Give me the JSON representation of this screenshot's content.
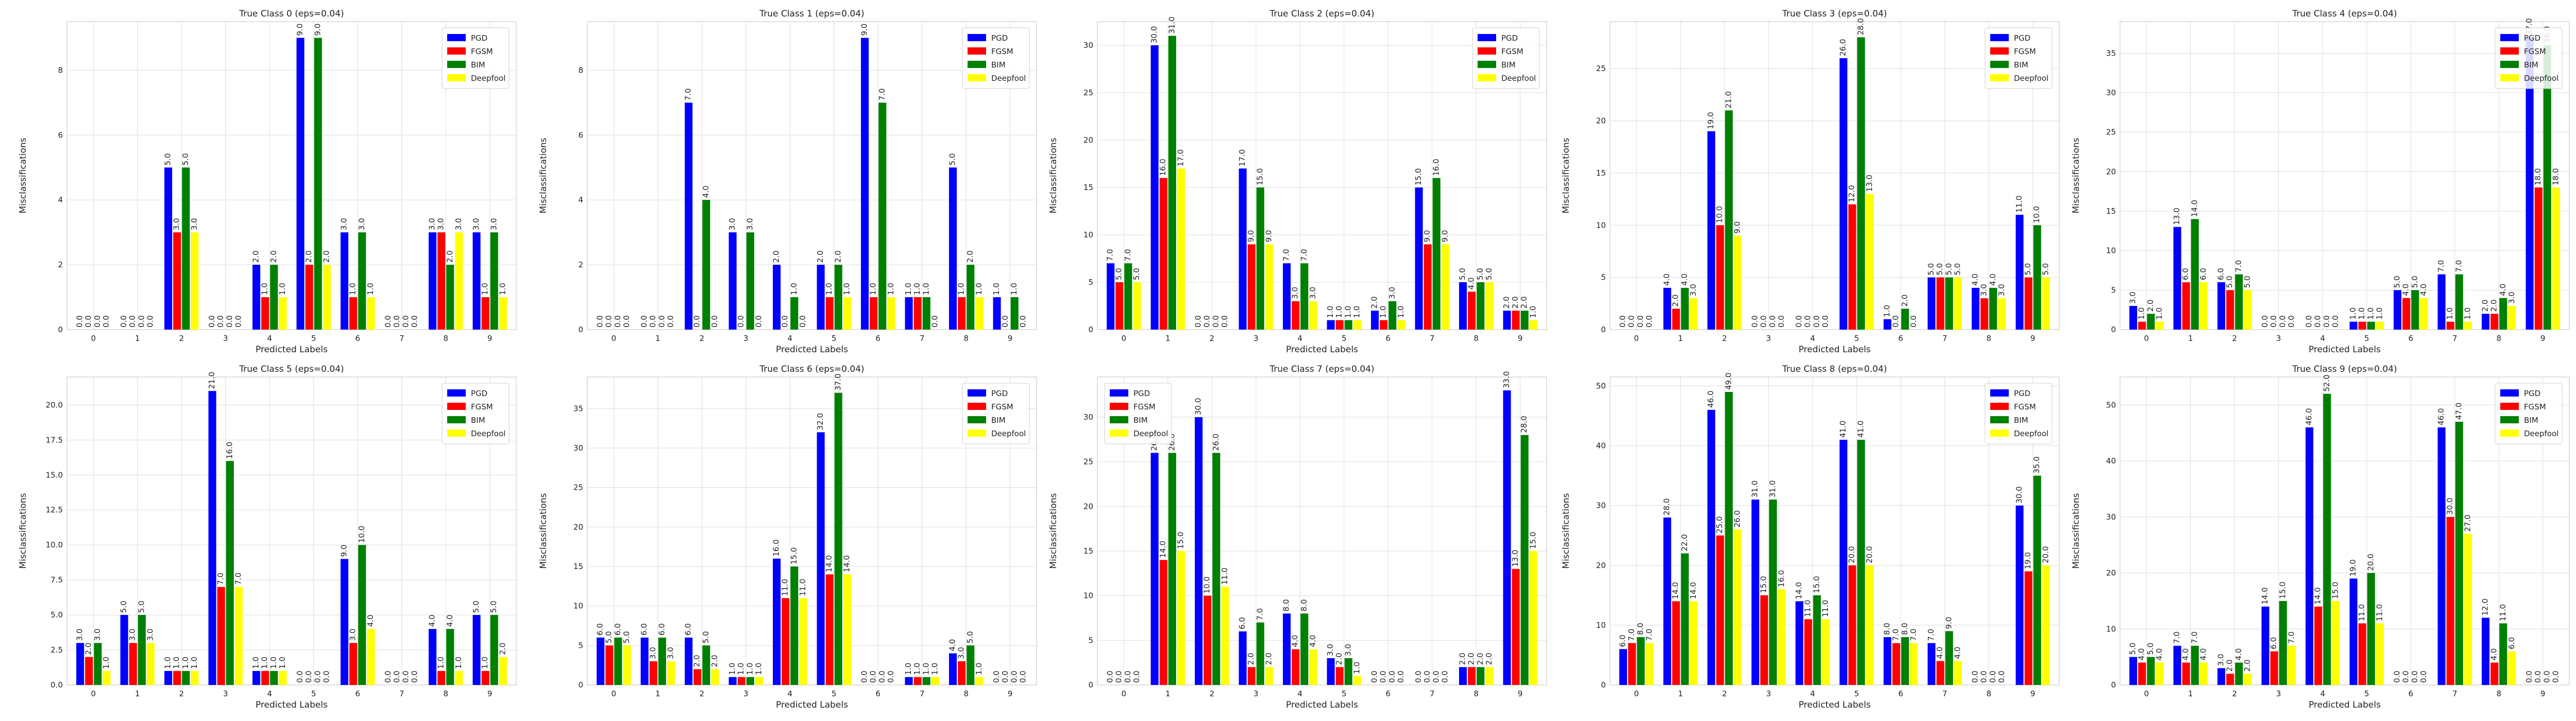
{
  "chart_data": [
    {
      "type": "bar",
      "title": "True Class 0 (eps=0.04)",
      "xlabel": "Predicted Labels",
      "ylabel": "Misclassifications",
      "categories": [
        "0",
        "1",
        "2",
        "3",
        "4",
        "5",
        "6",
        "7",
        "8",
        "9"
      ],
      "ylim": [
        0,
        9.5
      ],
      "yticks": [
        0,
        2,
        4,
        6,
        8
      ],
      "legend_position": "top-right",
      "grid": true,
      "series": [
        {
          "name": "PGD",
          "color": "#0000ff",
          "values": [
            0,
            0,
            5,
            0,
            2,
            9,
            3,
            0,
            3,
            3
          ]
        },
        {
          "name": "FGSM",
          "color": "#ff0000",
          "values": [
            0,
            0,
            3,
            0,
            1,
            2,
            1,
            0,
            3,
            1
          ]
        },
        {
          "name": "BIM",
          "color": "#008000",
          "values": [
            0,
            0,
            5,
            0,
            2,
            9,
            3,
            0,
            2,
            3
          ]
        },
        {
          "name": "Deepfool",
          "color": "#ffff00",
          "values": [
            0,
            0,
            3,
            0,
            1,
            2,
            1,
            0,
            3,
            1
          ]
        }
      ]
    },
    {
      "type": "bar",
      "title": "True Class 1 (eps=0.04)",
      "xlabel": "Predicted Labels",
      "ylabel": "Misclassifications",
      "categories": [
        "0",
        "1",
        "2",
        "3",
        "4",
        "5",
        "6",
        "7",
        "8",
        "9"
      ],
      "ylim": [
        0,
        9.5
      ],
      "yticks": [
        0,
        2,
        4,
        6,
        8
      ],
      "legend_position": "top-right",
      "grid": true,
      "series": [
        {
          "name": "PGD",
          "color": "#0000ff",
          "values": [
            0,
            0,
            7,
            3,
            2,
            2,
            9,
            1,
            5,
            1
          ]
        },
        {
          "name": "FGSM",
          "color": "#ff0000",
          "values": [
            0,
            0,
            0,
            0,
            0,
            1,
            1,
            1,
            1,
            0
          ]
        },
        {
          "name": "BIM",
          "color": "#008000",
          "values": [
            0,
            0,
            4,
            3,
            1,
            2,
            7,
            1,
            2,
            1
          ]
        },
        {
          "name": "Deepfool",
          "color": "#ffff00",
          "values": [
            0,
            0,
            0,
            0,
            0,
            1,
            1,
            0,
            1,
            0
          ]
        }
      ]
    },
    {
      "type": "bar",
      "title": "True Class 2 (eps=0.04)",
      "xlabel": "Predicted Labels",
      "ylabel": "Misclassifications",
      "categories": [
        "0",
        "1",
        "2",
        "3",
        "4",
        "5",
        "6",
        "7",
        "8",
        "9"
      ],
      "ylim": [
        0,
        32.5
      ],
      "yticks": [
        0,
        5,
        10,
        15,
        20,
        25,
        30
      ],
      "legend_position": "top-right",
      "grid": true,
      "series": [
        {
          "name": "PGD",
          "color": "#0000ff",
          "values": [
            7,
            30,
            0,
            17,
            7,
            1,
            2,
            15,
            5,
            2
          ]
        },
        {
          "name": "FGSM",
          "color": "#ff0000",
          "values": [
            5,
            16,
            0,
            9,
            3,
            1,
            1,
            9,
            4,
            2
          ]
        },
        {
          "name": "BIM",
          "color": "#008000",
          "values": [
            7,
            31,
            0,
            15,
            7,
            1,
            3,
            16,
            5,
            2
          ]
        },
        {
          "name": "Deepfool",
          "color": "#ffff00",
          "values": [
            5,
            17,
            0,
            9,
            3,
            1,
            1,
            9,
            5,
            1
          ]
        }
      ]
    },
    {
      "type": "bar",
      "title": "True Class 3 (eps=0.04)",
      "xlabel": "Predicted Labels",
      "ylabel": "Misclassifications",
      "categories": [
        "0",
        "1",
        "2",
        "3",
        "4",
        "5",
        "6",
        "7",
        "8",
        "9"
      ],
      "ylim": [
        0,
        29.5
      ],
      "yticks": [
        0,
        5,
        10,
        15,
        20,
        25
      ],
      "legend_position": "top-right",
      "grid": true,
      "series": [
        {
          "name": "PGD",
          "color": "#0000ff",
          "values": [
            0,
            4,
            19,
            0,
            0,
            26,
            1,
            5,
            4,
            11
          ]
        },
        {
          "name": "FGSM",
          "color": "#ff0000",
          "values": [
            0,
            2,
            10,
            0,
            0,
            12,
            0,
            5,
            3,
            5
          ]
        },
        {
          "name": "BIM",
          "color": "#008000",
          "values": [
            0,
            4,
            21,
            0,
            0,
            28,
            2,
            5,
            4,
            10
          ]
        },
        {
          "name": "Deepfool",
          "color": "#ffff00",
          "values": [
            0,
            3,
            9,
            0,
            0,
            13,
            0,
            5,
            3,
            5
          ]
        }
      ]
    },
    {
      "type": "bar",
      "title": "True Class 4 (eps=0.04)",
      "xlabel": "Predicted Labels",
      "ylabel": "Misclassifications",
      "categories": [
        "0",
        "1",
        "2",
        "3",
        "4",
        "5",
        "6",
        "7",
        "8",
        "9"
      ],
      "ylim": [
        0,
        39
      ],
      "yticks": [
        0,
        5,
        10,
        15,
        20,
        25,
        30,
        35
      ],
      "legend_position": "top-right",
      "grid": true,
      "series": [
        {
          "name": "PGD",
          "color": "#0000ff",
          "values": [
            3,
            13,
            6,
            0,
            0,
            1,
            5,
            7,
            2,
            37
          ]
        },
        {
          "name": "FGSM",
          "color": "#ff0000",
          "values": [
            1,
            6,
            5,
            0,
            0,
            1,
            4,
            1,
            2,
            18
          ]
        },
        {
          "name": "BIM",
          "color": "#008000",
          "values": [
            2,
            14,
            7,
            0,
            0,
            1,
            5,
            7,
            4,
            36
          ]
        },
        {
          "name": "Deepfool",
          "color": "#ffff00",
          "values": [
            1,
            6,
            5,
            0,
            0,
            1,
            4,
            1,
            3,
            18
          ]
        }
      ]
    },
    {
      "type": "bar",
      "title": "True Class 5 (eps=0.04)",
      "xlabel": "Predicted Labels",
      "ylabel": "Misclassifications",
      "categories": [
        "0",
        "1",
        "2",
        "3",
        "4",
        "5",
        "6",
        "7",
        "8",
        "9"
      ],
      "ylim": [
        0,
        22
      ],
      "yticks": [
        0,
        2.5,
        5.0,
        7.5,
        10.0,
        12.5,
        15.0,
        17.5,
        20.0
      ],
      "legend_position": "top-right",
      "grid": true,
      "series": [
        {
          "name": "PGD",
          "color": "#0000ff",
          "values": [
            3,
            5,
            1,
            21,
            1,
            0,
            9,
            0,
            4,
            5
          ]
        },
        {
          "name": "FGSM",
          "color": "#ff0000",
          "values": [
            2,
            3,
            1,
            7,
            1,
            0,
            3,
            0,
            1,
            1
          ]
        },
        {
          "name": "BIM",
          "color": "#008000",
          "values": [
            3,
            5,
            1,
            16,
            1,
            0,
            10,
            0,
            4,
            5
          ]
        },
        {
          "name": "Deepfool",
          "color": "#ffff00",
          "values": [
            1,
            3,
            1,
            7,
            1,
            0,
            4,
            0,
            1,
            2
          ]
        }
      ]
    },
    {
      "type": "bar",
      "title": "True Class 6 (eps=0.04)",
      "xlabel": "Predicted Labels",
      "ylabel": "Misclassifications",
      "categories": [
        "0",
        "1",
        "2",
        "3",
        "4",
        "5",
        "6",
        "7",
        "8",
        "9"
      ],
      "ylim": [
        0,
        39
      ],
      "yticks": [
        0,
        5,
        10,
        15,
        20,
        25,
        30,
        35
      ],
      "legend_position": "top-right",
      "grid": true,
      "series": [
        {
          "name": "PGD",
          "color": "#0000ff",
          "values": [
            6,
            6,
            6,
            1,
            16,
            32,
            0,
            1,
            4,
            0
          ]
        },
        {
          "name": "FGSM",
          "color": "#ff0000",
          "values": [
            5,
            3,
            2,
            1,
            11,
            14,
            0,
            1,
            3,
            0
          ]
        },
        {
          "name": "BIM",
          "color": "#008000",
          "values": [
            6,
            6,
            5,
            1,
            15,
            37,
            0,
            1,
            5,
            0
          ]
        },
        {
          "name": "Deepfool",
          "color": "#ffff00",
          "values": [
            5,
            3,
            2,
            1,
            11,
            14,
            0,
            1,
            1,
            0
          ]
        }
      ]
    },
    {
      "type": "bar",
      "title": "True Class 7 (eps=0.04)",
      "xlabel": "Predicted Labels",
      "ylabel": "Misclassifications",
      "categories": [
        "0",
        "1",
        "2",
        "3",
        "4",
        "5",
        "6",
        "7",
        "8",
        "9"
      ],
      "ylim": [
        0,
        34.5
      ],
      "yticks": [
        0,
        5,
        10,
        15,
        20,
        25,
        30
      ],
      "legend_position": "top-left",
      "grid": true,
      "series": [
        {
          "name": "PGD",
          "color": "#0000ff",
          "values": [
            0,
            26,
            30,
            6,
            8,
            3,
            0,
            0,
            2,
            33
          ]
        },
        {
          "name": "FGSM",
          "color": "#ff0000",
          "values": [
            0,
            14,
            10,
            2,
            4,
            2,
            0,
            0,
            2,
            13
          ]
        },
        {
          "name": "BIM",
          "color": "#008000",
          "values": [
            0,
            26,
            26,
            7,
            8,
            3,
            0,
            0,
            2,
            28
          ]
        },
        {
          "name": "Deepfool",
          "color": "#ffff00",
          "values": [
            0,
            15,
            11,
            2,
            4,
            1,
            0,
            0,
            2,
            15
          ]
        }
      ]
    },
    {
      "type": "bar",
      "title": "True Class 8 (eps=0.04)",
      "xlabel": "Predicted Labels",
      "ylabel": "Misclassifications",
      "categories": [
        "0",
        "1",
        "2",
        "3",
        "4",
        "5",
        "6",
        "7",
        "8",
        "9"
      ],
      "ylim": [
        0,
        51.5
      ],
      "yticks": [
        0,
        10,
        20,
        30,
        40,
        50
      ],
      "legend_position": "top-right",
      "grid": true,
      "series": [
        {
          "name": "PGD",
          "color": "#0000ff",
          "values": [
            6,
            28,
            46,
            31,
            14,
            41,
            8,
            7,
            0,
            30
          ]
        },
        {
          "name": "FGSM",
          "color": "#ff0000",
          "values": [
            7,
            14,
            25,
            15,
            11,
            20,
            7,
            4,
            0,
            19
          ]
        },
        {
          "name": "BIM",
          "color": "#008000",
          "values": [
            8,
            22,
            49,
            31,
            15,
            41,
            8,
            9,
            0,
            35
          ]
        },
        {
          "name": "Deepfool",
          "color": "#ffff00",
          "values": [
            7,
            14,
            26,
            16,
            11,
            20,
            7,
            4,
            0,
            20
          ]
        }
      ]
    },
    {
      "type": "bar",
      "title": "True Class 9 (eps=0.04)",
      "xlabel": "Predicted Labels",
      "ylabel": "Misclassifications",
      "categories": [
        "0",
        "1",
        "2",
        "3",
        "4",
        "5",
        "6",
        "7",
        "8",
        "9"
      ],
      "ylim": [
        0,
        55
      ],
      "yticks": [
        0,
        10,
        20,
        30,
        40,
        50
      ],
      "legend_position": "top-right",
      "grid": true,
      "series": [
        {
          "name": "PGD",
          "color": "#0000ff",
          "values": [
            5,
            7,
            3,
            14,
            46,
            19,
            0,
            46,
            12,
            0
          ]
        },
        {
          "name": "FGSM",
          "color": "#ff0000",
          "values": [
            4,
            4,
            2,
            6,
            14,
            11,
            0,
            30,
            4,
            0
          ]
        },
        {
          "name": "BIM",
          "color": "#008000",
          "values": [
            5,
            7,
            4,
            15,
            52,
            20,
            0,
            47,
            11,
            0
          ]
        },
        {
          "name": "Deepfool",
          "color": "#ffff00",
          "values": [
            4,
            4,
            2,
            7,
            15,
            11,
            0,
            27,
            6,
            0
          ]
        }
      ]
    }
  ]
}
